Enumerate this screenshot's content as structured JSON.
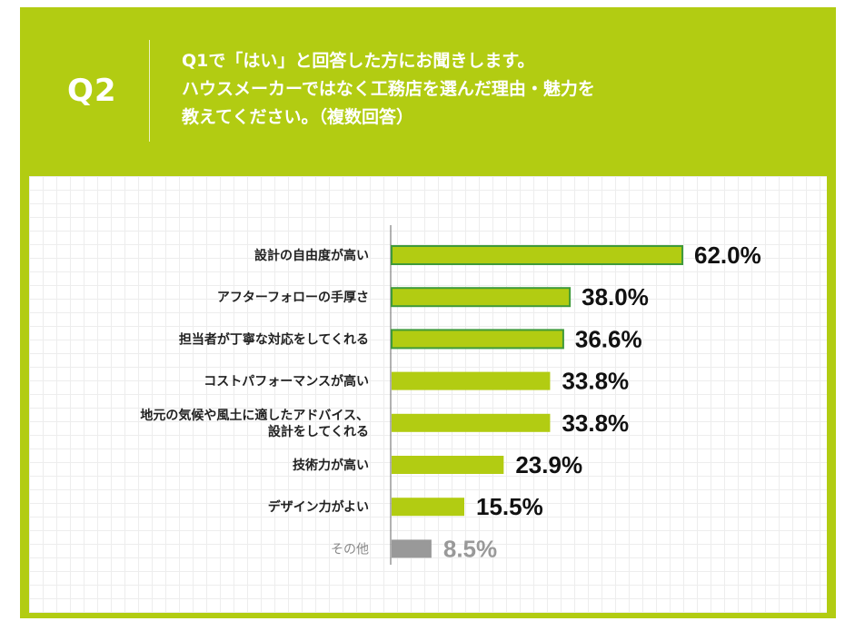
{
  "header": {
    "q_label": "Q2",
    "question_lines": [
      "Q1で「はい」と回答した方にお聞きします。",
      "ハウスメーカーではなく工務店を選んだ理由・魅力を",
      "教えてください。（複数回答）"
    ]
  },
  "colors": {
    "brand": "#b2cc12",
    "bar": "#b2cc12",
    "bar_highlight_border": "#3f9a3a",
    "bar_other": "#999999"
  },
  "chart_data": {
    "type": "bar",
    "orientation": "horizontal",
    "unit": "%",
    "xlim": [
      0,
      62
    ],
    "categories": [
      [
        "設計の自由度が高い"
      ],
      [
        "アフターフォローの手厚さ"
      ],
      [
        "担当者が丁寧な対応をしてくれる"
      ],
      [
        "コストパフォーマンスが高い"
      ],
      [
        "地元の気候や風土に適したアドバイス、",
        "設計をしてくれる"
      ],
      [
        "技術力が高い"
      ],
      [
        "デザイン力がよい"
      ],
      [
        "その他"
      ]
    ],
    "values": [
      62.0,
      38.0,
      36.6,
      33.8,
      33.8,
      23.9,
      15.5,
      8.5
    ],
    "value_labels": [
      "62.0%",
      "38.0%",
      "36.6%",
      "33.8%",
      "33.8%",
      "23.9%",
      "15.5%",
      "8.5%"
    ],
    "highlighted": [
      true,
      true,
      true,
      false,
      false,
      false,
      false,
      false
    ],
    "muted": [
      false,
      false,
      false,
      false,
      false,
      false,
      false,
      true
    ]
  }
}
